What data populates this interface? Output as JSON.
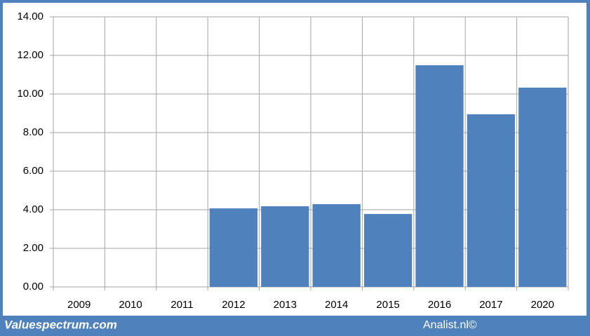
{
  "chart_data": {
    "type": "bar",
    "categories": [
      "2009",
      "2010",
      "2011",
      "2012",
      "2013",
      "2014",
      "2015",
      "2016",
      "2017",
      "2020"
    ],
    "values": [
      null,
      null,
      null,
      4.07,
      4.18,
      4.29,
      3.78,
      11.49,
      8.95,
      10.33
    ],
    "color": "#4f81bd",
    "ylim": [
      0,
      14
    ],
    "yticks": [
      {
        "value": 0,
        "label": "0.00"
      },
      {
        "value": 2,
        "label": "2.00"
      },
      {
        "value": 4,
        "label": "4.00"
      },
      {
        "value": 6,
        "label": "6.00"
      },
      {
        "value": 8,
        "label": "8.00"
      },
      {
        "value": 10,
        "label": "10.00"
      },
      {
        "value": 12,
        "label": "12.00"
      },
      {
        "value": 14,
        "label": "14.00"
      }
    ],
    "grid": true,
    "annotations": [
      "Valuespectrum.com",
      "Analist.nl©"
    ]
  }
}
